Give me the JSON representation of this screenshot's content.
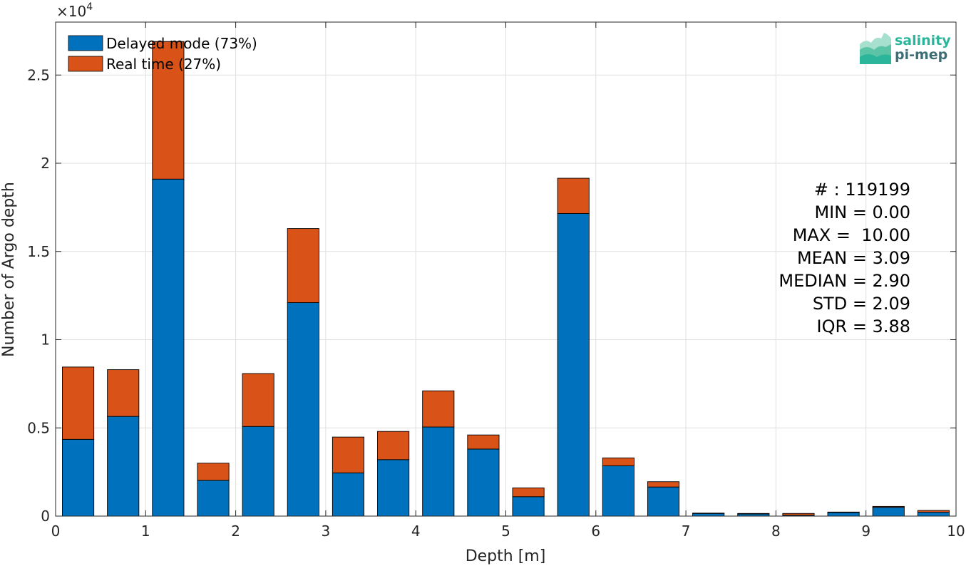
{
  "chart_data": {
    "type": "bar",
    "stacked": true,
    "xlabel": "Depth [m]",
    "ylabel": "Number of Argo depth",
    "xlim": [
      0,
      10
    ],
    "ylim": [
      0,
      28000
    ],
    "y_exponent_label": "×10",
    "y_exponent_power": "4",
    "grid": true,
    "legend_position": "top-left",
    "x_ticks": [
      0,
      1,
      2,
      3,
      4,
      5,
      6,
      7,
      8,
      9,
      10
    ],
    "x_tick_labels": [
      "0",
      "1",
      "2",
      "3",
      "4",
      "5",
      "6",
      "7",
      "8",
      "9",
      "10"
    ],
    "y_ticks": [
      0,
      5000,
      10000,
      15000,
      20000,
      25000
    ],
    "y_tick_labels": [
      "0",
      "0.5",
      "1",
      "1.5",
      "2",
      "2.5"
    ],
    "bin_width": 0.5,
    "bin_centers": [
      0.25,
      0.75,
      1.25,
      1.75,
      2.25,
      2.75,
      3.25,
      3.75,
      4.25,
      4.75,
      5.25,
      5.75,
      6.25,
      6.75,
      7.25,
      7.75,
      8.25,
      8.75,
      9.25,
      9.75
    ],
    "series": [
      {
        "name": "Delayed mode (73%)",
        "color": "#0072BD",
        "values": [
          4350,
          5650,
          19100,
          2030,
          5080,
          12100,
          2450,
          3200,
          5050,
          3800,
          1100,
          17150,
          2850,
          1650,
          150,
          120,
          50,
          200,
          500,
          220
        ]
      },
      {
        "name": "Real time (27%)",
        "color": "#D95319",
        "values": [
          4100,
          2650,
          7800,
          970,
          3000,
          4200,
          2030,
          1600,
          2050,
          800,
          500,
          2000,
          450,
          300,
          20,
          30,
          100,
          30,
          50,
          100
        ]
      }
    ],
    "annotation_lines": [
      "# : 119199",
      "MIN = 0.00",
      "MAX =  10.00",
      "MEAN = 3.09",
      "MEDIAN = 2.90",
      "STD = 2.09",
      "IQR = 3.88"
    ]
  },
  "logo": {
    "line1": "salinity",
    "line2": "pi-mep",
    "color1": "#2bb59a",
    "color2": "#3d6e75"
  }
}
